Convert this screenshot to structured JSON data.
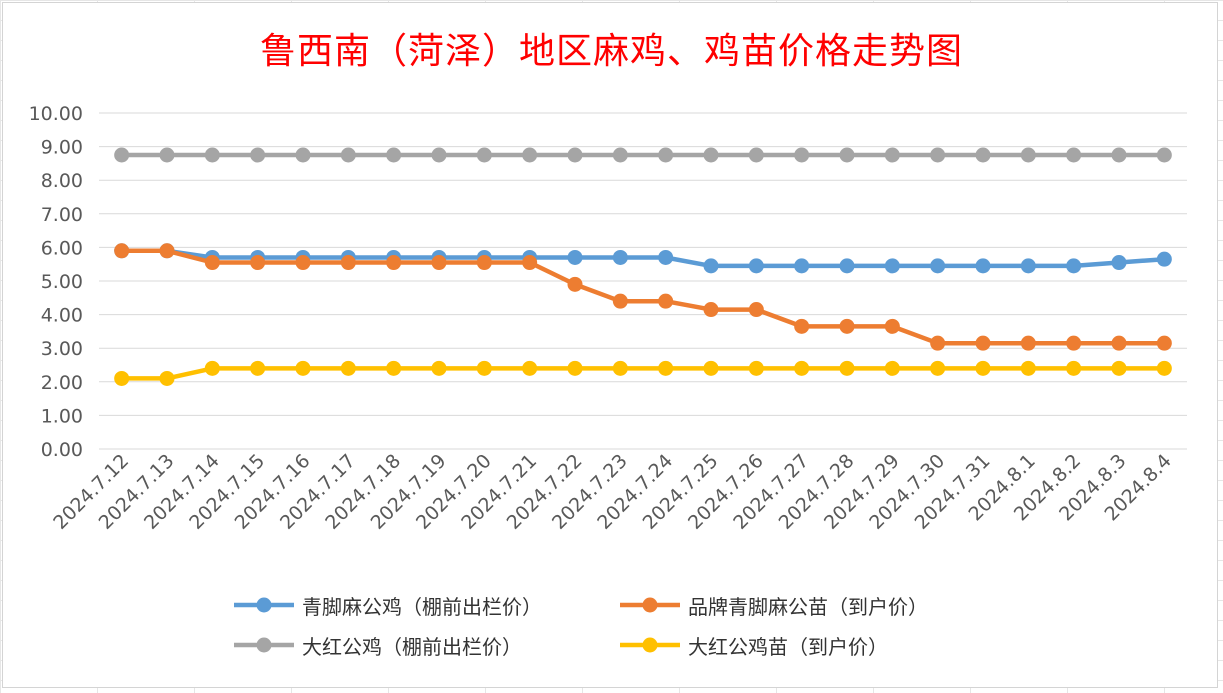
{
  "chart_data": {
    "type": "line",
    "title": "鲁西南（菏泽）地区麻鸡、鸡苗价格走势图",
    "categories": [
      "2024.7.12",
      "2024.7.13",
      "2024.7.14",
      "2024.7.15",
      "2024.7.16",
      "2024.7.17",
      "2024.7.18",
      "2024.7.19",
      "2024.7.20",
      "2024.7.21",
      "2024.7.22",
      "2024.7.23",
      "2024.7.24",
      "2024.7.25",
      "2024.7.26",
      "2024.7.27",
      "2024.7.28",
      "2024.7.29",
      "2024.7.30",
      "2024.7.31",
      "2024.8.1",
      "2024.8.2",
      "2024.8.3",
      "2024.8.4"
    ],
    "y_ticks": [
      "0.00",
      "1.00",
      "2.00",
      "3.00",
      "4.00",
      "5.00",
      "6.00",
      "7.00",
      "8.00",
      "9.00",
      "10.00"
    ],
    "ylim": [
      0,
      10
    ],
    "grid": true,
    "legend_position": "bottom",
    "series": [
      {
        "name": "青脚麻公鸡（棚前出栏价）",
        "color": "#5b9bd5",
        "values": [
          5.9,
          5.9,
          5.7,
          5.7,
          5.7,
          5.7,
          5.7,
          5.7,
          5.7,
          5.7,
          5.7,
          5.7,
          5.7,
          5.45,
          5.45,
          5.45,
          5.45,
          5.45,
          5.45,
          5.45,
          5.45,
          5.45,
          5.55,
          5.65
        ]
      },
      {
        "name": "品牌青脚麻公苗（到户价）",
        "color": "#ed7d31",
        "values": [
          5.9,
          5.9,
          5.55,
          5.55,
          5.55,
          5.55,
          5.55,
          5.55,
          5.55,
          5.55,
          4.9,
          4.4,
          4.4,
          4.15,
          4.15,
          3.65,
          3.65,
          3.65,
          3.15,
          3.15,
          3.15,
          3.15,
          3.15,
          3.15
        ]
      },
      {
        "name": "大红公鸡（棚前出栏价）",
        "color": "#a5a5a5",
        "values": [
          8.75,
          8.75,
          8.75,
          8.75,
          8.75,
          8.75,
          8.75,
          8.75,
          8.75,
          8.75,
          8.75,
          8.75,
          8.75,
          8.75,
          8.75,
          8.75,
          8.75,
          8.75,
          8.75,
          8.75,
          8.75,
          8.75,
          8.75,
          8.75
        ]
      },
      {
        "name": "大红公鸡苗（到户价）",
        "color": "#ffc000",
        "values": [
          2.1,
          2.1,
          2.4,
          2.4,
          2.4,
          2.4,
          2.4,
          2.4,
          2.4,
          2.4,
          2.4,
          2.4,
          2.4,
          2.4,
          2.4,
          2.4,
          2.4,
          2.4,
          2.4,
          2.4,
          2.4,
          2.4,
          2.4,
          2.4
        ]
      }
    ]
  }
}
